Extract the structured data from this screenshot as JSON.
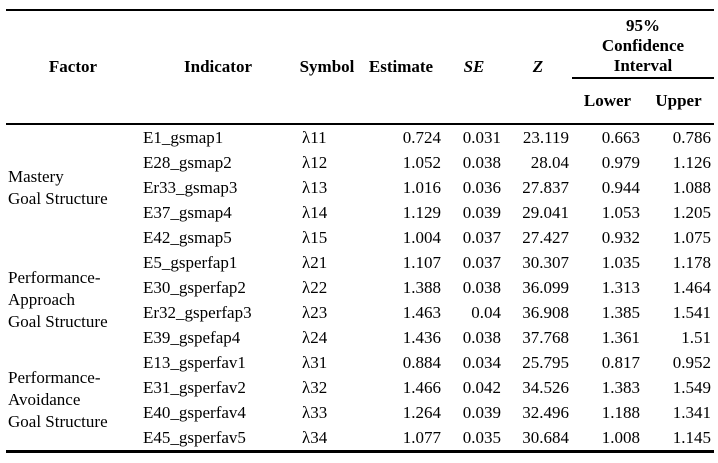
{
  "table": {
    "headers": {
      "factor": "Factor",
      "indicator": "Indicator",
      "symbol": "Symbol",
      "estimate": "Estimate",
      "se": "SE",
      "z": "Z",
      "ci": "95% Confidence Interval",
      "lower": "Lower",
      "upper": "Upper"
    },
    "colors": {
      "text": "#000000",
      "background": "#ffffff",
      "rule": "#000000"
    },
    "groups": [
      {
        "factor": "Mastery Goal Structure",
        "factor_lines": [
          "Mastery",
          "Goal Structure"
        ],
        "rows": [
          {
            "indicator": "E1_gsmap1",
            "symbol": "λ11",
            "estimate": "0.724",
            "se": "0.031",
            "z": "23.119",
            "lower": "0.663",
            "upper": "0.786"
          },
          {
            "indicator": "E28_gsmap2",
            "symbol": "λ12",
            "estimate": "1.052",
            "se": "0.038",
            "z": "28.04",
            "lower": "0.979",
            "upper": "1.126"
          },
          {
            "indicator": "Er33_gsmap3",
            "symbol": "λ13",
            "estimate": "1.016",
            "se": "0.036",
            "z": "27.837",
            "lower": "0.944",
            "upper": "1.088"
          },
          {
            "indicator": "E37_gsmap4",
            "symbol": "λ14",
            "estimate": "1.129",
            "se": "0.039",
            "z": "29.041",
            "lower": "1.053",
            "upper": "1.205"
          },
          {
            "indicator": "E42_gsmap5",
            "symbol": "λ15",
            "estimate": "1.004",
            "se": "0.037",
            "z": "27.427",
            "lower": "0.932",
            "upper": "1.075"
          }
        ]
      },
      {
        "factor": "Performance-Approach Goal Structure",
        "factor_lines": [
          "Performance-",
          "Approach",
          "Goal Structure"
        ],
        "rows": [
          {
            "indicator": "E5_gsperfap1",
            "symbol": "λ21",
            "estimate": "1.107",
            "se": "0.037",
            "z": "30.307",
            "lower": "1.035",
            "upper": "1.178"
          },
          {
            "indicator": "E30_gsperfap2",
            "symbol": "λ22",
            "estimate": "1.388",
            "se": "0.038",
            "z": "36.099",
            "lower": "1.313",
            "upper": "1.464"
          },
          {
            "indicator": "Er32_gsperfap3",
            "symbol": "λ23",
            "estimate": "1.463",
            "se": "0.04",
            "z": "36.908",
            "lower": "1.385",
            "upper": "1.541"
          },
          {
            "indicator": "E39_gspefap4",
            "symbol": "λ24",
            "estimate": "1.436",
            "se": "0.038",
            "z": "37.768",
            "lower": "1.361",
            "upper": "1.51"
          }
        ]
      },
      {
        "factor": "Performance-Avoidance Goal Structure",
        "factor_lines": [
          "Performance-",
          "Avoidance",
          "Goal Structure"
        ],
        "rows": [
          {
            "indicator": "E13_gsperfav1",
            "symbol": "λ31",
            "estimate": "0.884",
            "se": "0.034",
            "z": "25.795",
            "lower": "0.817",
            "upper": "0.952"
          },
          {
            "indicator": "E31_gsperfav2",
            "symbol": "λ32",
            "estimate": "1.466",
            "se": "0.042",
            "z": "34.526",
            "lower": "1.383",
            "upper": "1.549"
          },
          {
            "indicator": "E40_gsperfav4",
            "symbol": "λ33",
            "estimate": "1.264",
            "se": "0.039",
            "z": "32.496",
            "lower": "1.188",
            "upper": "1.341"
          },
          {
            "indicator": "E45_gsperfav5",
            "symbol": "λ34",
            "estimate": "1.077",
            "se": "0.035",
            "z": "30.684",
            "lower": "1.008",
            "upper": "1.145"
          }
        ]
      }
    ]
  }
}
